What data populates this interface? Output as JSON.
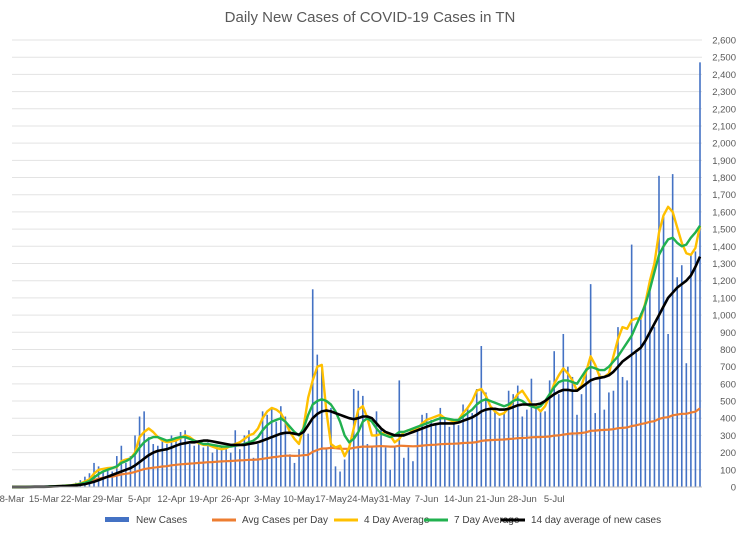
{
  "chart_data": {
    "type": "bar",
    "title": "Daily New Cases of COVID-19 Cases in TN",
    "xlabel": "",
    "ylabel": "",
    "ylim": [
      0,
      2600
    ],
    "y_ticks": [
      0,
      100,
      200,
      300,
      400,
      500,
      600,
      700,
      800,
      900,
      1000,
      1100,
      1200,
      1300,
      1400,
      1500,
      1600,
      1700,
      1800,
      1900,
      2000,
      2100,
      2200,
      2300,
      2400,
      2500,
      2600
    ],
    "y_tick_labels": [
      "0",
      "100",
      "200",
      "300",
      "400",
      "500",
      "600",
      "700",
      "800",
      "900",
      "1,000",
      "1,100",
      "1,200",
      "1,300",
      "1,400",
      "1,500",
      "1,600",
      "1,700",
      "1,800",
      "1,900",
      "2,000",
      "2,100",
      "2,200",
      "2,300",
      "2,400",
      "2,500",
      "2,600"
    ],
    "y_axis_side": "right",
    "x_tick_labels": [
      "8-Mar",
      "15-Mar",
      "22-Mar",
      "29-Mar",
      "5-Apr",
      "12-Apr",
      "19-Apr",
      "26-Apr",
      "3-May",
      "10-May",
      "17-May",
      "24-May",
      "31-May",
      "7-Jun",
      "14-Jun",
      "21-Jun",
      "28-Jun",
      "5-Jul"
    ],
    "x_start": "2020-03-08",
    "grid": true,
    "legend_position": "bottom",
    "colors": {
      "new_cases": "#4472c4",
      "avg": "#ed7d31",
      "four_day": "#ffc000",
      "seven_day": "#21b14f",
      "fourteen_day": "#000000"
    },
    "series": [
      {
        "name": "New Cases",
        "type": "bar",
        "values": [
          0,
          0,
          0,
          0,
          2,
          2,
          1,
          2,
          3,
          8,
          6,
          9,
          12,
          12,
          25,
          40,
          60,
          80,
          140,
          120,
          90,
          110,
          90,
          180,
          240,
          140,
          180,
          300,
          410,
          440,
          290,
          250,
          240,
          270,
          250,
          300,
          280,
          320,
          330,
          250,
          240,
          270,
          230,
          260,
          200,
          240,
          240,
          230,
          200,
          330,
          220,
          300,
          330,
          170,
          250,
          440,
          420,
          460,
          380,
          470,
          410,
          190,
          140,
          220,
          330,
          310,
          1150,
          770,
          700,
          230,
          460,
          120,
          90,
          160,
          240,
          570,
          560,
          530,
          250,
          230,
          440,
          340,
          230,
          100,
          230,
          620,
          170,
          230,
          150,
          340,
          420,
          430,
          390,
          370,
          460,
          400,
          350,
          380,
          360,
          480,
          460,
          430,
          570,
          820,
          550,
          450,
          440,
          400,
          430,
          560,
          540,
          590,
          410,
          450,
          630,
          460,
          450,
          440,
          620,
          790,
          540,
          890,
          700,
          640,
          420,
          540,
          690,
          1180,
          430,
          660,
          450,
          550,
          560,
          930,
          640,
          620,
          1410,
          780,
          1010,
          1060,
          1210,
          930,
          1810,
          1570,
          890,
          1820,
          1220,
          1290,
          720,
          1350,
          1370,
          2470
        ]
      },
      {
        "name": "Avg Cases per Day",
        "type": "line",
        "values": [
          0,
          0,
          0,
          0,
          1,
          1,
          1,
          1,
          2,
          3,
          4,
          5,
          6,
          8,
          12,
          17,
          24,
          32,
          40,
          48,
          54,
          58,
          60,
          67,
          73,
          77,
          81,
          88,
          96,
          104,
          109,
          112,
          115,
          119,
          121,
          126,
          129,
          132,
          134,
          136,
          138,
          140,
          142,
          144,
          145,
          147,
          149,
          150,
          151,
          153,
          155,
          156,
          158,
          158,
          160,
          164,
          168,
          172,
          175,
          179,
          182,
          182,
          181,
          182,
          185,
          187,
          205,
          215,
          224,
          224,
          228,
          226,
          223,
          222,
          222,
          228,
          232,
          235,
          235,
          235,
          237,
          238,
          237,
          235,
          235,
          240,
          239,
          238,
          237,
          238,
          241,
          243,
          245,
          246,
          249,
          250,
          251,
          252,
          253,
          256,
          257,
          258,
          261,
          268,
          271,
          273,
          274,
          275,
          276,
          279,
          281,
          284,
          285,
          286,
          289,
          290,
          291,
          292,
          294,
          299,
          300,
          305,
          309,
          311,
          312,
          314,
          318,
          327,
          328,
          331,
          332,
          334,
          336,
          342,
          344,
          346,
          355,
          359,
          366,
          371,
          379,
          383,
          396,
          403,
          406,
          417,
          421,
          426,
          426,
          433,
          438,
          458
        ]
      },
      {
        "name": "4 Day Average",
        "type": "line",
        "values": [
          0,
          0,
          0,
          0,
          1,
          2,
          2,
          2,
          2,
          4,
          5,
          6,
          9,
          10,
          15,
          20,
          32,
          45,
          78,
          100,
          105,
          110,
          112,
          115,
          150,
          160,
          165,
          200,
          290,
          320,
          340,
          320,
          290,
          270,
          260,
          265,
          270,
          285,
          300,
          290,
          270,
          255,
          245,
          245,
          235,
          225,
          220,
          225,
          240,
          250,
          260,
          280,
          300,
          310,
          340,
          400,
          440,
          460,
          450,
          430,
          380,
          320,
          280,
          250,
          350,
          520,
          620,
          700,
          710,
          440,
          250,
          230,
          240,
          180,
          230,
          340,
          450,
          470,
          400,
          300,
          300,
          310,
          320,
          300,
          260,
          280,
          320,
          330,
          330,
          340,
          370,
          390,
          400,
          410,
          420,
          400,
          390,
          380,
          390,
          430,
          460,
          500,
          560,
          570,
          530,
          470,
          440,
          420,
          430,
          460,
          500,
          540,
          560,
          520,
          480,
          470,
          440,
          470,
          530,
          600,
          650,
          690,
          660,
          620,
          560,
          590,
          670,
          760,
          710,
          640,
          640,
          660,
          760,
          860,
          930,
          920,
          970,
          980,
          980,
          1070,
          1200,
          1300,
          1480,
          1580,
          1630,
          1600,
          1510,
          1420,
          1360,
          1350,
          1390,
          1520
        ]
      },
      {
        "name": "7 Day Average",
        "type": "line",
        "values": [
          0,
          0,
          0,
          0,
          1,
          1,
          2,
          2,
          3,
          4,
          5,
          6,
          8,
          10,
          13,
          18,
          25,
          35,
          55,
          75,
          90,
          100,
          110,
          120,
          140,
          150,
          165,
          190,
          230,
          260,
          280,
          290,
          290,
          280,
          270,
          275,
          285,
          290,
          290,
          280,
          270,
          260,
          250,
          250,
          245,
          240,
          235,
          235,
          235,
          240,
          245,
          250,
          260,
          270,
          290,
          330,
          360,
          380,
          390,
          400,
          380,
          350,
          320,
          300,
          340,
          420,
          480,
          500,
          510,
          500,
          480,
          440,
          380,
          300,
          260,
          280,
          320,
          380,
          400,
          380,
          340,
          310,
          300,
          290,
          300,
          320,
          320,
          330,
          340,
          350,
          360,
          370,
          380,
          390,
          400,
          400,
          395,
          390,
          390,
          410,
          430,
          450,
          480,
          500,
          510,
          500,
          490,
          480,
          470,
          480,
          500,
          510,
          500,
          480,
          470,
          460,
          470,
          500,
          540,
          580,
          610,
          620,
          620,
          610,
          600,
          640,
          680,
          700,
          690,
          680,
          680,
          700,
          730,
          760,
          800,
          840,
          880,
          940,
          1000,
          1060,
          1150,
          1250,
          1350,
          1400,
          1440,
          1450,
          1420,
          1400,
          1410,
          1450,
          1480,
          1520
        ]
      },
      {
        "name": "14 day average of new cases",
        "type": "line",
        "values": [
          0,
          0,
          0,
          0,
          0,
          1,
          1,
          1,
          2,
          3,
          4,
          5,
          6,
          8,
          10,
          13,
          17,
          23,
          30,
          40,
          50,
          60,
          70,
          80,
          90,
          100,
          110,
          125,
          145,
          165,
          185,
          200,
          210,
          215,
          220,
          230,
          240,
          250,
          255,
          260,
          260,
          265,
          270,
          270,
          265,
          260,
          255,
          250,
          245,
          245,
          245,
          245,
          250,
          255,
          260,
          270,
          280,
          290,
          300,
          310,
          315,
          315,
          310,
          305,
          320,
          360,
          400,
          425,
          440,
          445,
          440,
          430,
          420,
          410,
          400,
          395,
          400,
          410,
          410,
          400,
          370,
          340,
          320,
          310,
          300,
          300,
          300,
          310,
          320,
          330,
          340,
          350,
          360,
          365,
          370,
          370,
          370,
          370,
          375,
          385,
          395,
          405,
          420,
          440,
          450,
          455,
          455,
          450,
          450,
          455,
          465,
          475,
          480,
          480,
          480,
          480,
          485,
          500,
          520,
          540,
          555,
          565,
          565,
          560,
          560,
          580,
          600,
          620,
          630,
          635,
          640,
          650,
          670,
          700,
          730,
          750,
          770,
          790,
          810,
          850,
          900,
          950,
          1000,
          1050,
          1100,
          1130,
          1160,
          1180,
          1200,
          1230,
          1280,
          1340
        ]
      }
    ]
  }
}
